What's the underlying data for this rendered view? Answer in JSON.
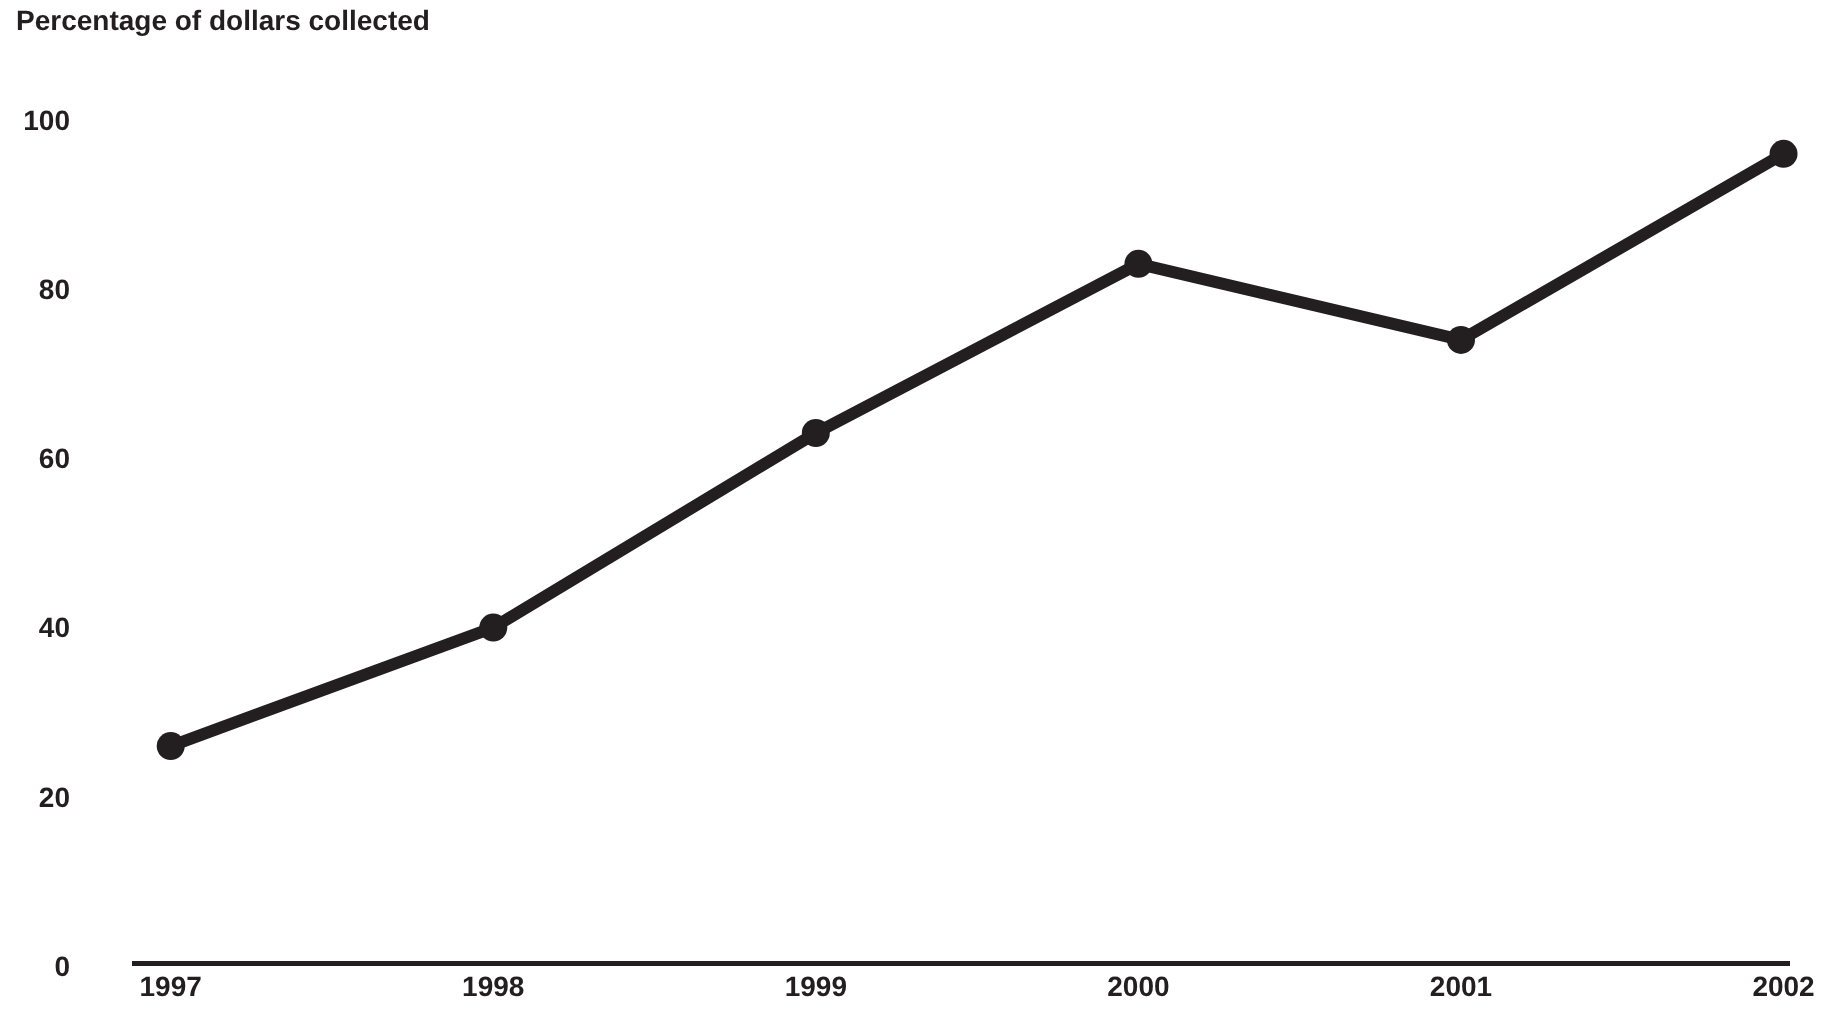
{
  "chart_data": {
    "type": "line",
    "ylabel": "Percentage of dollars collected",
    "categories": [
      "1997",
      "1998",
      "1999",
      "2000",
      "2001",
      "2002"
    ],
    "series": [
      {
        "color": "#231f20",
        "values": [
          26,
          40,
          63,
          83,
          74,
          96
        ]
      }
    ],
    "ylim": [
      0,
      100
    ],
    "yticks": [
      0,
      20,
      40,
      60,
      80,
      100
    ],
    "marker": "circle",
    "line_style": "solid"
  }
}
